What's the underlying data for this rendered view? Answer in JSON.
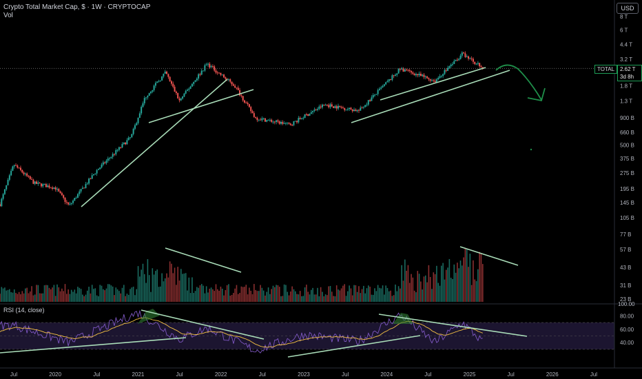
{
  "header": {
    "title": "Crypto Total Market Cap, $ · 1W · CRYPTOCAP",
    "vol_label": "Vol",
    "rsi_label": "RSI (14, close)"
  },
  "currency_button": "USD",
  "price_tag": {
    "ticker": "TOTAL",
    "value": "2.62 T",
    "countdown": "3d 8h"
  },
  "colors": {
    "up": "#26a69a",
    "down": "#ef5350",
    "trendline": "#a9dcb8",
    "arrow": "#1f8f4a",
    "rsi_line": "#7e57c2",
    "rsi_ma": "#f6c344",
    "rsi_band": "#1c1530"
  },
  "chart_data": {
    "type": "candlestick",
    "title": "Crypto Total Market Cap, $ · 1W · CRYPTOCAP",
    "y_scale": "log",
    "y_ticks": [
      "8 T",
      "6 T",
      "4.4 T",
      "3.2 T",
      "1.8 T",
      "1.3 T",
      "900 B",
      "660 B",
      "500 B",
      "375 B",
      "275 B",
      "195 B",
      "145 B",
      "105 B"
    ],
    "volume_ticks": [
      "77 B",
      "57 B",
      "43 B",
      "31 B",
      "23 B"
    ],
    "rsi_ticks": [
      "80.00",
      "60.00",
      "40.00"
    ],
    "x_ticks": [
      "Jul",
      "2020",
      "Jul",
      "2021",
      "Jul",
      "2022",
      "Jul",
      "2023",
      "Jul",
      "2024",
      "Jul",
      "2025",
      "Jul",
      "2026",
      "Jul"
    ],
    "x_range": [
      "2019-05",
      "2026-10"
    ],
    "last_price": "2.62 T",
    "key_points": [
      {
        "date": "2019-05",
        "value": 140
      },
      {
        "date": "2019-07",
        "value": 330
      },
      {
        "date": "2019-10",
        "value": 220
      },
      {
        "date": "2020-01",
        "value": 200
      },
      {
        "date": "2020-03",
        "value": 135
      },
      {
        "date": "2020-07",
        "value": 290
      },
      {
        "date": "2020-12",
        "value": 600
      },
      {
        "date": "2021-02",
        "value": 1400
      },
      {
        "date": "2021-05",
        "value": 2400
      },
      {
        "date": "2021-07",
        "value": 1300
      },
      {
        "date": "2021-11",
        "value": 2900
      },
      {
        "date": "2022-03",
        "value": 1800
      },
      {
        "date": "2022-06",
        "value": 900
      },
      {
        "date": "2022-11",
        "value": 780
      },
      {
        "date": "2023-04",
        "value": 1200
      },
      {
        "date": "2023-09",
        "value": 1050
      },
      {
        "date": "2024-03",
        "value": 2600
      },
      {
        "date": "2024-08",
        "value": 2000
      },
      {
        "date": "2024-12",
        "value": 3600
      },
      {
        "date": "2025-03",
        "value": 2620
      }
    ],
    "rsi_key_points": [
      {
        "date": "2019-07",
        "value": 66
      },
      {
        "date": "2020-03",
        "value": 40
      },
      {
        "date": "2021-01",
        "value": 85
      },
      {
        "date": "2021-07",
        "value": 45
      },
      {
        "date": "2021-11",
        "value": 62
      },
      {
        "date": "2022-06",
        "value": 28
      },
      {
        "date": "2023-01",
        "value": 52
      },
      {
        "date": "2023-09",
        "value": 42
      },
      {
        "date": "2024-03",
        "value": 82
      },
      {
        "date": "2024-08",
        "value": 40
      },
      {
        "date": "2024-12",
        "value": 70
      },
      {
        "date": "2025-03",
        "value": 40
      }
    ],
    "series": [
      {
        "values": [
          140,
          330,
          220,
          200,
          135,
          290,
          600,
          1400,
          2400,
          1300,
          2900,
          1800,
          900,
          780,
          1200,
          1050,
          2600,
          2000,
          3600,
          2620
        ]
      }
    ]
  }
}
